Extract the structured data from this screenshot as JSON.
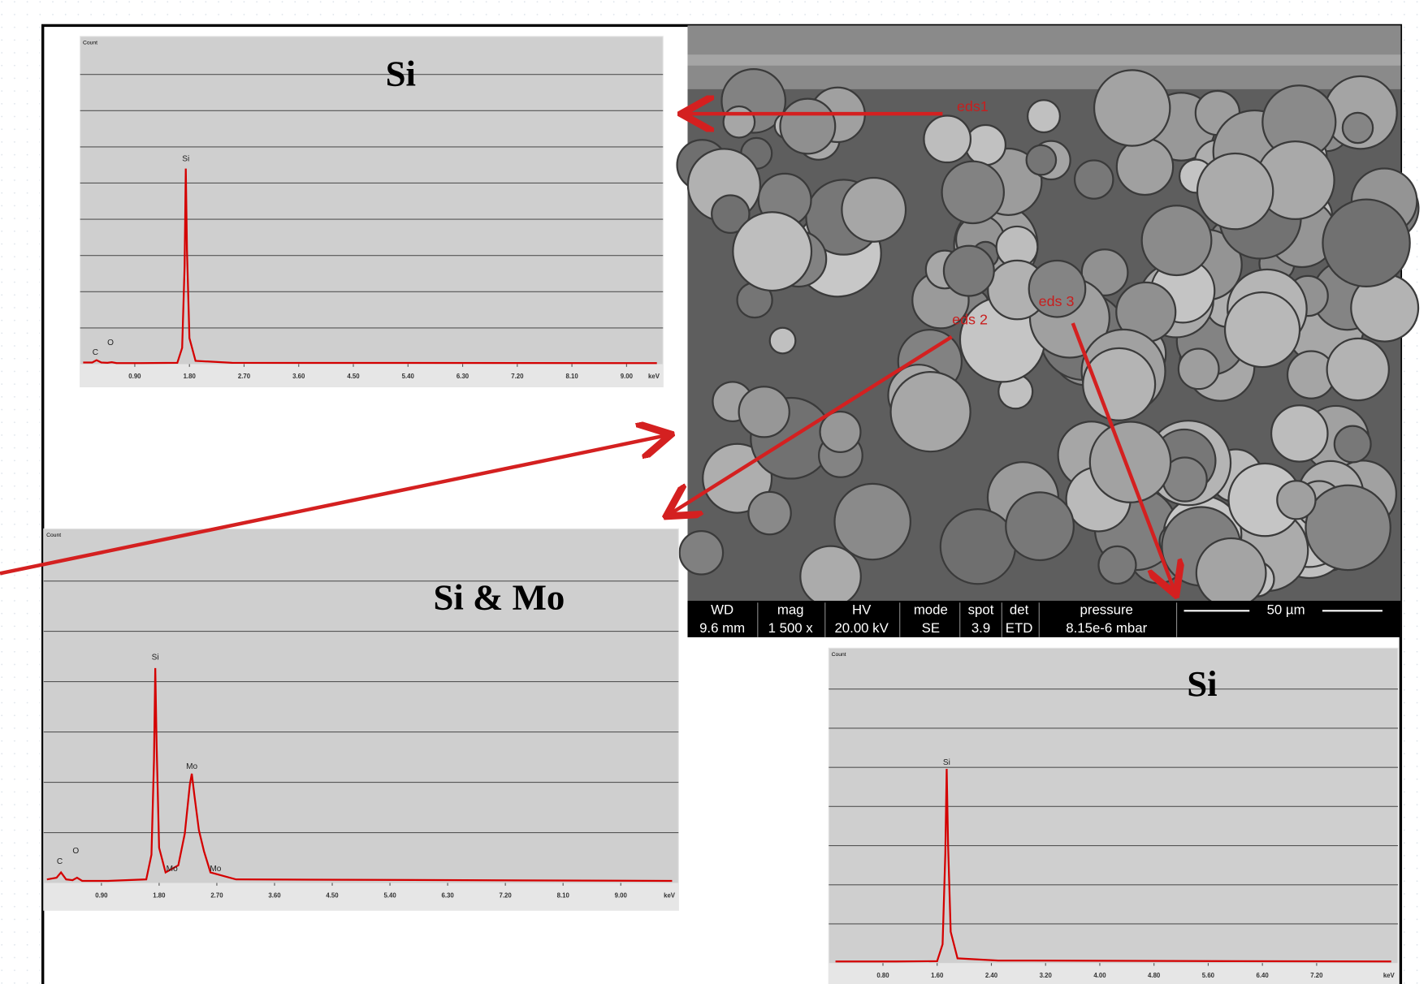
{
  "sem": {
    "labels": [
      "eds1",
      "eds 2",
      "eds 3"
    ],
    "info_headers": [
      "WD",
      "mag",
      "HV",
      "mode",
      "spot",
      "det",
      "pressure"
    ],
    "info_values": [
      "9.6 mm",
      "1 500 x",
      "20.00 kV",
      "SE",
      "3.9",
      "ETD",
      "8.15e-6 mbar"
    ],
    "scale_bar": "50 µm"
  },
  "chart_data": [
    {
      "type": "line",
      "title": "Si",
      "y_label": "Count",
      "x_unit": "keV",
      "grid": true,
      "xlim": [
        0,
        9.6
      ],
      "ylim": [
        0,
        100
      ],
      "xticks": [
        {
          "value": 0.9,
          "label": "0.90"
        },
        {
          "value": 1.8,
          "label": "1.80"
        },
        {
          "value": 2.7,
          "label": "2.70"
        },
        {
          "value": 3.6,
          "label": "3.60"
        },
        {
          "value": 4.5,
          "label": "4.50"
        },
        {
          "value": 5.4,
          "label": "5.40"
        },
        {
          "value": 6.3,
          "label": "6.30"
        },
        {
          "value": 7.2,
          "label": "7.20"
        },
        {
          "value": 8.1,
          "label": "8.10"
        },
        {
          "value": 9,
          "label": "9.00"
        }
      ],
      "x": [
        0.05,
        0.2,
        0.27,
        0.35,
        0.45,
        0.52,
        0.6,
        1.0,
        1.6,
        1.68,
        1.72,
        1.74,
        1.76,
        1.8,
        1.9,
        2.5,
        9.5
      ],
      "series": [
        {
          "color": "#d40000",
          "values": [
            0.5,
            0.5,
            1.2,
            0.5,
            0.4,
            0.6,
            0.3,
            0.3,
            0.4,
            5,
            30,
            60,
            35,
            8,
            1,
            0.4,
            0.3
          ]
        }
      ],
      "annotations": [
        {
          "text": "C",
          "x": 0.25,
          "y": 3.5
        },
        {
          "text": "O",
          "x": 0.5,
          "y": 6.5
        },
        {
          "text": "Si",
          "x": 1.74,
          "y": 63
        }
      ]
    },
    {
      "type": "line",
      "title": "Si & Mo",
      "y_label": "Count",
      "x_unit": "keV",
      "grid": true,
      "xlim": [
        0,
        9.9
      ],
      "ylim": [
        0,
        100
      ],
      "xticks": [
        {
          "value": 0.9,
          "label": "0.90"
        },
        {
          "value": 1.8,
          "label": "1.80"
        },
        {
          "value": 2.7,
          "label": "2.70"
        },
        {
          "value": 3.6,
          "label": "3.60"
        },
        {
          "value": 4.5,
          "label": "4.50"
        },
        {
          "value": 5.4,
          "label": "5.40"
        },
        {
          "value": 6.3,
          "label": "6.30"
        },
        {
          "value": 7.2,
          "label": "7.20"
        },
        {
          "value": 8.1,
          "label": "8.10"
        },
        {
          "value": 9,
          "label": "9.00"
        }
      ],
      "x": [
        0.05,
        0.2,
        0.27,
        0.35,
        0.45,
        0.52,
        0.6,
        1.0,
        1.6,
        1.68,
        1.72,
        1.74,
        1.76,
        1.8,
        1.9,
        2.1,
        2.2,
        2.28,
        2.31,
        2.35,
        2.42,
        2.5,
        2.6,
        3.0,
        9.8
      ],
      "series": [
        {
          "color": "#d40000",
          "values": [
            1,
            1.5,
            3,
            1,
            0.8,
            1.5,
            0.6,
            0.6,
            1,
            8,
            35,
            61,
            40,
            10,
            3,
            5,
            14,
            28,
            31,
            25,
            15,
            9,
            3,
            1,
            0.6
          ]
        }
      ],
      "annotations": [
        {
          "text": "C",
          "x": 0.25,
          "y": 6
        },
        {
          "text": "O",
          "x": 0.5,
          "y": 9
        },
        {
          "text": "Si",
          "x": 1.74,
          "y": 64
        },
        {
          "text": "Mo",
          "x": 2.31,
          "y": 33
        },
        {
          "text": "Mo",
          "x": 2.0,
          "y": 4
        },
        {
          "text": "Mo",
          "x": 2.68,
          "y": 4
        }
      ]
    },
    {
      "type": "line",
      "title": "Si",
      "y_label": "Count",
      "x_unit": "keV",
      "grid": true,
      "xlim": [
        0,
        8.4
      ],
      "ylim": [
        0,
        100
      ],
      "xticks": [
        {
          "value": 0.8,
          "label": "0.80"
        },
        {
          "value": 1.6,
          "label": "1.60"
        },
        {
          "value": 2.4,
          "label": "2.40"
        },
        {
          "value": 3.2,
          "label": "3.20"
        },
        {
          "value": 4,
          "label": "4.00"
        },
        {
          "value": 4.8,
          "label": "4.80"
        },
        {
          "value": 5.6,
          "label": "5.60"
        },
        {
          "value": 6.4,
          "label": "6.40"
        },
        {
          "value": 7.2,
          "label": "7.20"
        }
      ],
      "x": [
        0.1,
        1.0,
        1.6,
        1.68,
        1.72,
        1.74,
        1.76,
        1.8,
        1.9,
        2.5,
        8.3
      ],
      "series": [
        {
          "color": "#d40000",
          "values": [
            0.5,
            0.5,
            0.6,
            6,
            35,
            62,
            38,
            10,
            1.5,
            0.8,
            0.5
          ]
        }
      ],
      "annotations": [
        {
          "text": "Si",
          "x": 1.74,
          "y": 64
        }
      ]
    }
  ]
}
